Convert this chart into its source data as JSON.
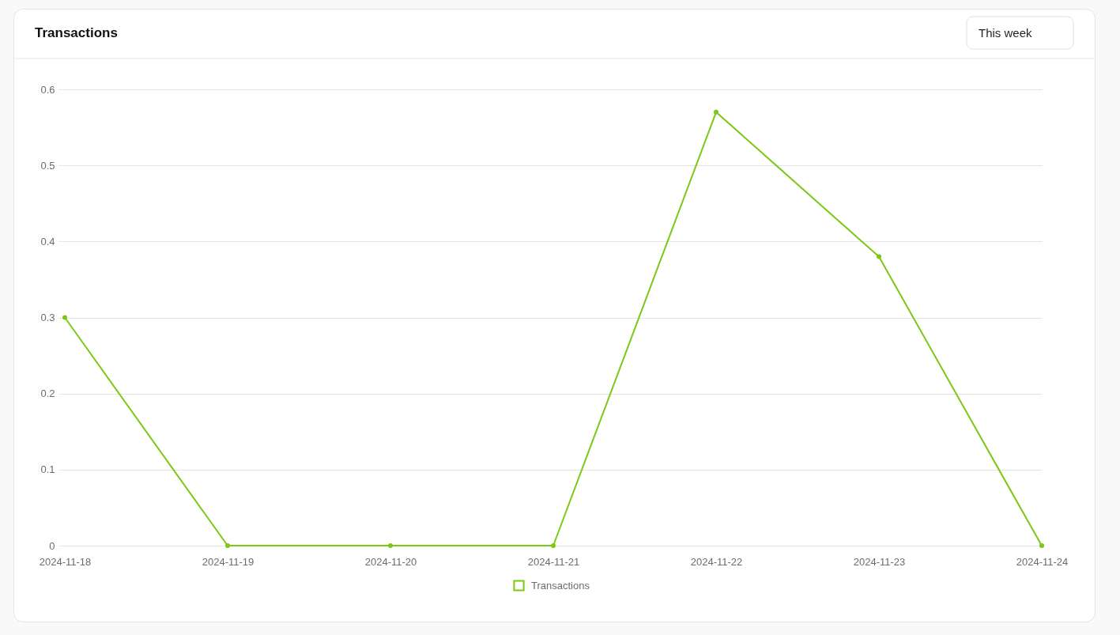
{
  "chart_data": {
    "type": "line",
    "title": "Transactions",
    "annotations": [
      "This week"
    ],
    "categories": [
      "2024-11-18",
      "2024-11-19",
      "2024-11-20",
      "2024-11-21",
      "2024-11-22",
      "2024-11-23",
      "2024-11-24"
    ],
    "series": [
      {
        "name": "Transactions",
        "color": "#7cc814",
        "values": [
          0.3,
          0,
          0,
          0,
          0.57,
          0.38,
          0
        ]
      }
    ],
    "ylim": [
      0,
      0.6
    ],
    "yticks": [
      0,
      0.1,
      0.2,
      0.3,
      0.4,
      0.5,
      0.6
    ],
    "grid": "y",
    "legend": "bottom",
    "marker": "circle",
    "line_style": "solid"
  }
}
